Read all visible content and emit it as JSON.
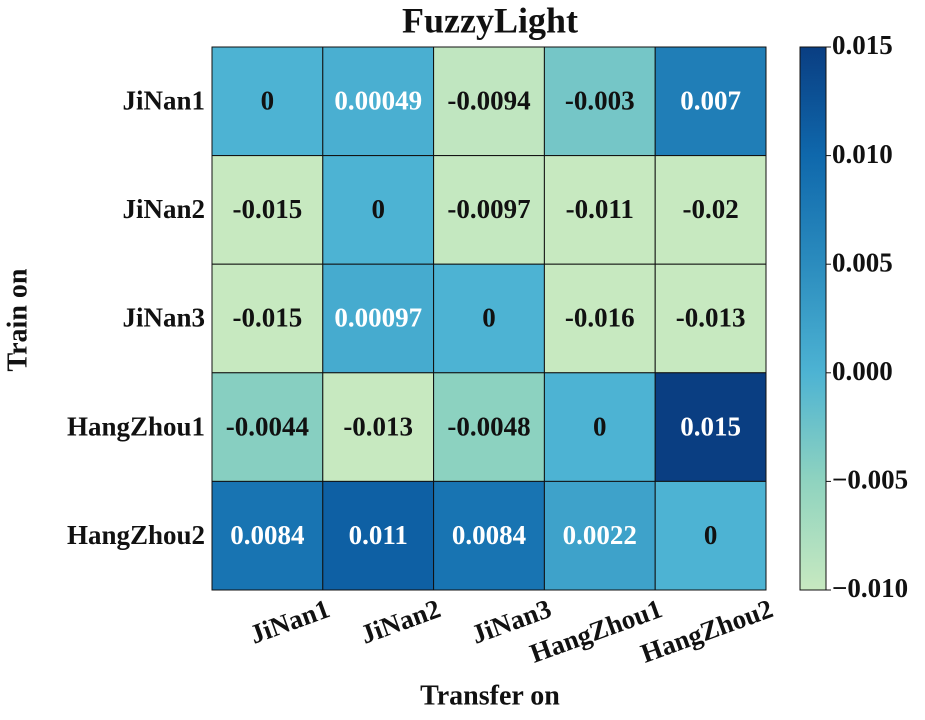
{
  "chart_data": {
    "type": "heatmap",
    "title": "FuzzyLight",
    "x_label": "Transfer on",
    "y_label": "Train on",
    "x_categories": [
      "JiNan1",
      "JiNan2",
      "JiNan3",
      "HangZhou1",
      "HangZhou2"
    ],
    "y_categories": [
      "JiNan1",
      "JiNan2",
      "JiNan3",
      "HangZhou1",
      "HangZhou2"
    ],
    "values": [
      [
        0,
        0.00049,
        -0.0094,
        -0.003,
        0.007
      ],
      [
        -0.015,
        0,
        -0.0097,
        -0.011,
        -0.02
      ],
      [
        -0.015,
        0.00097,
        0,
        -0.016,
        -0.013
      ],
      [
        -0.0044,
        -0.013,
        -0.0048,
        0,
        0.015
      ],
      [
        0.0084,
        0.011,
        0.0084,
        0.0022,
        0
      ]
    ],
    "colorbar_lim": [
      -0.01,
      0.015
    ],
    "colorbar_ticks": [
      0.015,
      {
        "value": 0.01,
        "label": "0.010"
      },
      {
        "value": 0.005,
        "label": "0.005"
      },
      {
        "value": 0,
        "label": "0.000"
      },
      {
        "value": -0.005,
        "label": "−0.005"
      },
      {
        "value": -0.01,
        "label": "−0.010"
      }
    ],
    "colorscale": [
      "#c7e9c0",
      "#8fd3bf",
      "#4db3d3",
      "#2b8cbe",
      "#0f68ac",
      "#0a3e82"
    ]
  }
}
